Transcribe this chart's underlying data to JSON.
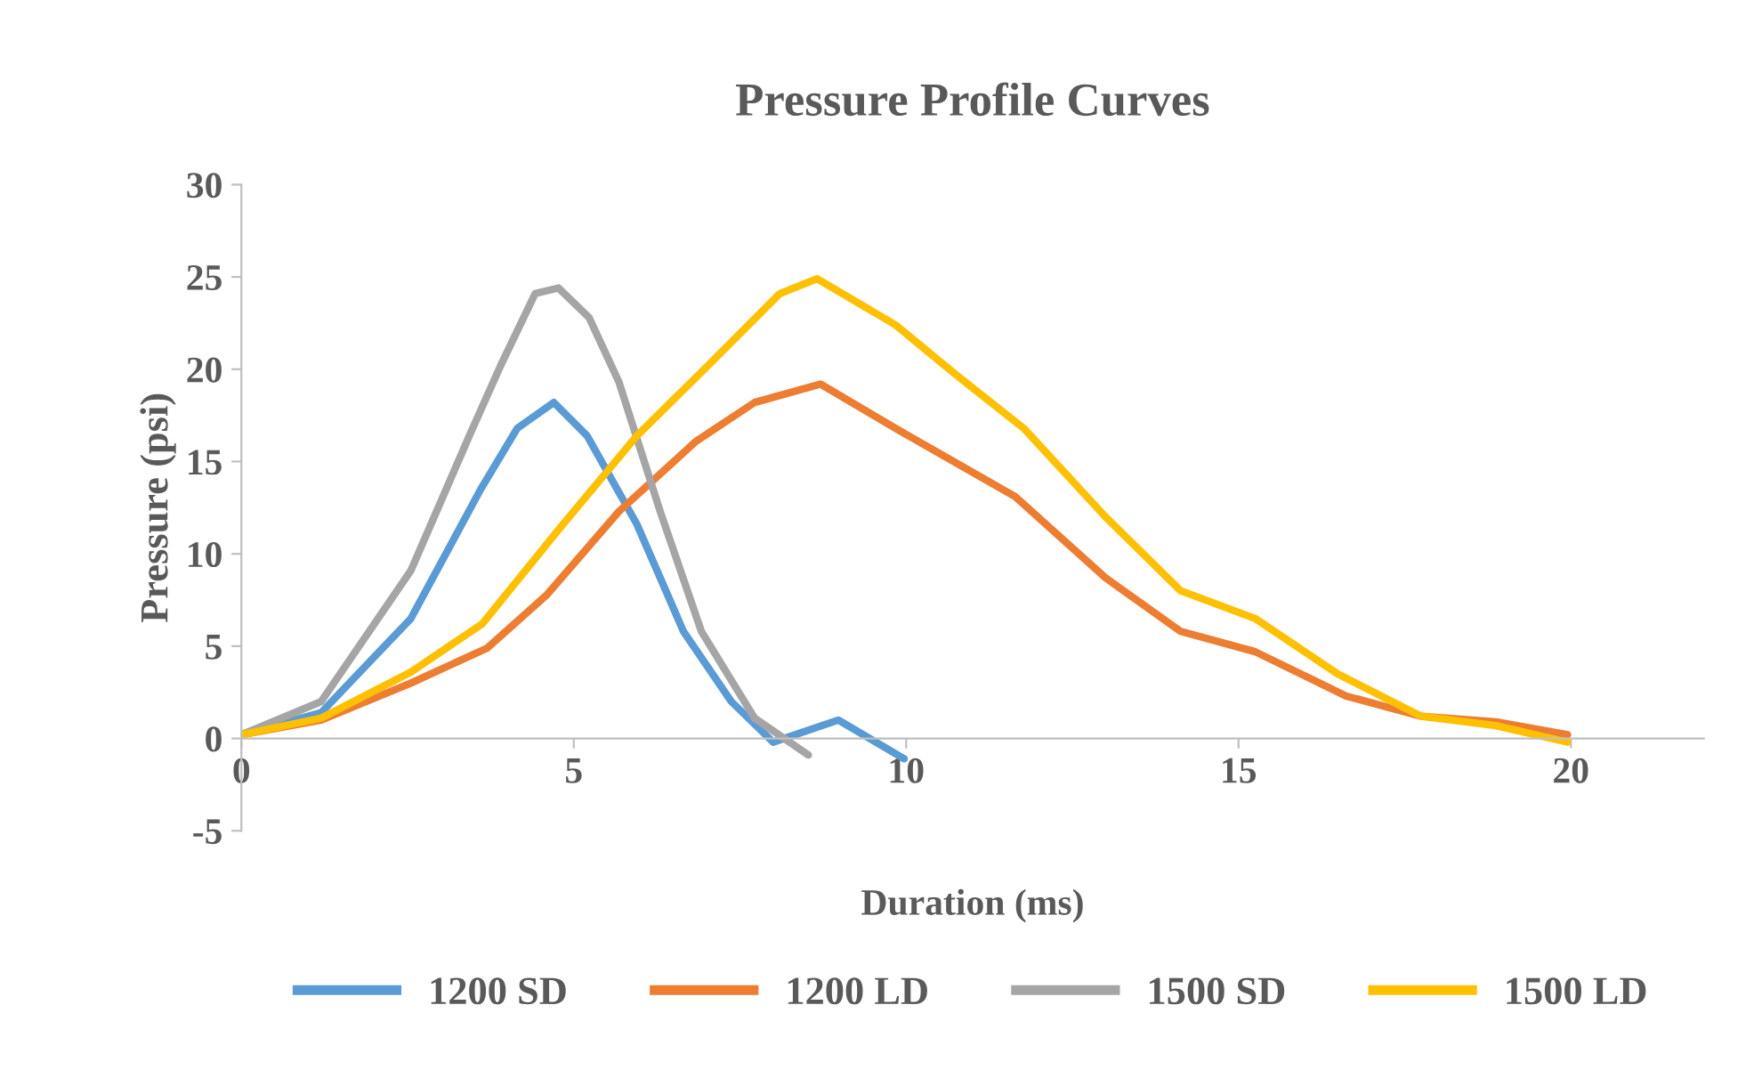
{
  "chart_data": {
    "type": "line",
    "title": "Pressure Profile Curves",
    "xlabel": "Duration (ms)",
    "ylabel": "Pressure (psi)",
    "xlim": [
      0,
      22
    ],
    "xticks": [
      0,
      5,
      10,
      15,
      20
    ],
    "ylim": [
      -5,
      30
    ],
    "yticks": [
      -5,
      0,
      5,
      10,
      15,
      20,
      25,
      30
    ],
    "grid": false,
    "legend": "bottom",
    "marker": "none",
    "line_style": "solid",
    "series": [
      {
        "name": "1200 SD",
        "color": "#5b9bd5",
        "x": [
          0,
          1.2,
          2.55,
          3.6,
          4.15,
          4.7,
          5.2,
          5.95,
          6.65,
          7.37,
          8.0,
          8.98,
          9.97
        ],
        "values": [
          0.2,
          1.4,
          6.5,
          13.5,
          16.8,
          18.2,
          16.4,
          11.6,
          5.8,
          2.0,
          -0.2,
          1.0,
          -1.1
        ]
      },
      {
        "name": "1200 LD",
        "color": "#ed7d31",
        "x": [
          0,
          1.2,
          2.55,
          3.7,
          4.6,
          5.68,
          6.84,
          7.72,
          8.71,
          9.84,
          11.64,
          13.0,
          14.13,
          15.25,
          16.62,
          17.75,
          18.87,
          19.95
        ],
        "values": [
          0.2,
          1.0,
          3.0,
          4.9,
          7.8,
          12.3,
          16.1,
          18.2,
          19.2,
          16.8,
          13.1,
          8.7,
          5.8,
          4.7,
          2.3,
          1.2,
          0.9,
          0.2
        ]
      },
      {
        "name": "1500 SD",
        "color": "#a5a5a5",
        "x": [
          0,
          1.2,
          2.55,
          3.43,
          3.9,
          4.42,
          4.77,
          5.23,
          5.68,
          6.3,
          6.92,
          7.72,
          8.53
        ],
        "values": [
          0.2,
          2.0,
          9.1,
          16.4,
          20.2,
          24.1,
          24.4,
          22.8,
          19.3,
          12.3,
          5.8,
          1.1,
          -0.9
        ]
      },
      {
        "name": "1500 LD",
        "color": "#ffc000",
        "x": [
          0,
          1.2,
          2.55,
          3.62,
          4.77,
          5.95,
          7.02,
          8.1,
          8.66,
          9.84,
          10.75,
          11.77,
          13.0,
          14.13,
          15.25,
          16.49,
          17.75,
          18.87,
          19.95
        ],
        "values": [
          0.2,
          1.1,
          3.6,
          6.2,
          11.3,
          16.4,
          20.2,
          24.1,
          24.9,
          22.4,
          19.7,
          16.8,
          12.0,
          8.0,
          6.5,
          3.5,
          1.2,
          0.7,
          -0.2
        ]
      }
    ]
  }
}
